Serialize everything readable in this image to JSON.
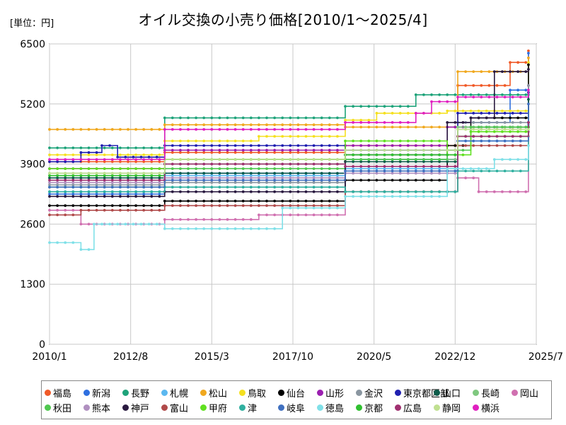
{
  "header": {
    "unit_label": "[単位：円]",
    "title": "オイル交換の小売り価格[2010/1～2025/4]"
  },
  "chart_data": {
    "type": "line",
    "title": "オイル交換の小売り価格[2010/1～2025/4]",
    "unit": "[単位：円]",
    "xlabel": "",
    "ylabel": "",
    "ylim": [
      0,
      6500
    ],
    "xlim": [
      "2010/1",
      "2025/7"
    ],
    "y_ticks": [
      "0",
      "1300",
      "2600",
      "3900",
      "5200",
      "6500"
    ],
    "x_ticks": [
      "2010/1",
      "2012/8",
      "2015/3",
      "2017/10",
      "2020/5",
      "2022/12",
      "2025/7"
    ],
    "grid": true,
    "legend_position": "bottom",
    "series": [
      {
        "name": "福島",
        "color": "#f05a28",
        "points": [
          [
            "2010/1",
            3950
          ],
          [
            "2013/9",
            4150
          ],
          [
            "2019/6",
            4300
          ],
          [
            "2023/1",
            5600
          ],
          [
            "2024/9",
            6100
          ],
          [
            "2025/4",
            6350
          ]
        ]
      },
      {
        "name": "新潟",
        "color": "#2e6fe0",
        "points": [
          [
            "2010/1",
            3250
          ],
          [
            "2013/9",
            3700
          ],
          [
            "2019/6",
            4000
          ],
          [
            "2023/1",
            4800
          ],
          [
            "2024/9",
            5500
          ],
          [
            "2025/4",
            6300
          ]
        ]
      },
      {
        "name": "長野",
        "color": "#1ea37a",
        "points": [
          [
            "2010/1",
            4250
          ],
          [
            "2013/9",
            4900
          ],
          [
            "2019/6",
            5150
          ],
          [
            "2021/9",
            5400
          ],
          [
            "2025/4",
            5400
          ]
        ]
      },
      {
        "name": "札幌",
        "color": "#5bb8f0",
        "points": [
          [
            "2010/1",
            3300
          ],
          [
            "2013/9",
            3650
          ],
          [
            "2019/6",
            3800
          ],
          [
            "2023/1",
            4400
          ],
          [
            "2025/4",
            4750
          ]
        ]
      },
      {
        "name": "松山",
        "color": "#f0a81e",
        "points": [
          [
            "2010/1",
            4650
          ],
          [
            "2013/9",
            4750
          ],
          [
            "2019/6",
            4700
          ],
          [
            "2023/1",
            5900
          ],
          [
            "2025/4",
            6200
          ]
        ]
      },
      {
        "name": "鳥取",
        "color": "#f5e020",
        "points": [
          [
            "2010/1",
            4100
          ],
          [
            "2013/9",
            4400
          ],
          [
            "2016/9",
            4500
          ],
          [
            "2019/6",
            4850
          ],
          [
            "2020/6",
            5000
          ],
          [
            "2022/9",
            5050
          ],
          [
            "2025/4",
            6100
          ]
        ]
      },
      {
        "name": "仙台",
        "color": "#000000",
        "points": [
          [
            "2010/1",
            3000
          ],
          [
            "2013/9",
            3100
          ],
          [
            "2019/6",
            3550
          ],
          [
            "2022/9",
            4300
          ],
          [
            "2023/6",
            4900
          ],
          [
            "2025/4",
            6050
          ]
        ]
      },
      {
        "name": "山形",
        "color": "#9b1fb0",
        "points": [
          [
            "2010/1",
            3800
          ],
          [
            "2013/9",
            4200
          ],
          [
            "2019/6",
            4300
          ],
          [
            "2022/9",
            4700
          ],
          [
            "2025/4",
            5600
          ]
        ]
      },
      {
        "name": "金沢",
        "color": "#8a96a0",
        "points": [
          [
            "2010/1",
            3450
          ],
          [
            "2013/9",
            3500
          ],
          [
            "2019/6",
            4100
          ],
          [
            "2023/1",
            4800
          ],
          [
            "2025/4",
            5600
          ]
        ]
      },
      {
        "name": "東京都区部",
        "color": "#2020b0",
        "points": [
          [
            "2010/1",
            3950
          ],
          [
            "2011/1",
            4150
          ],
          [
            "2011/9",
            4300
          ],
          [
            "2012/3",
            4050
          ],
          [
            "2013/9",
            4300
          ],
          [
            "2019/6",
            4200
          ],
          [
            "2023/1",
            5000
          ],
          [
            "2025/4",
            5450
          ]
        ]
      },
      {
        "name": "山口",
        "color": "#0d5c4a",
        "points": [
          [
            "2010/1",
            3600
          ],
          [
            "2013/9",
            3700
          ],
          [
            "2019/6",
            3950
          ],
          [
            "2023/1",
            4700
          ],
          [
            "2025/4",
            5300
          ]
        ]
      },
      {
        "name": "長崎",
        "color": "#7fc87f",
        "points": [
          [
            "2010/1",
            3700
          ],
          [
            "2013/9",
            3900
          ],
          [
            "2019/6",
            4000
          ],
          [
            "2023/1",
            4700
          ],
          [
            "2025/4",
            4800
          ]
        ]
      },
      {
        "name": "岡山",
        "color": "#d070b0",
        "points": [
          [
            "2010/1",
            2900
          ],
          [
            "2011/1",
            2600
          ],
          [
            "2013/9",
            2700
          ],
          [
            "2016/9",
            2800
          ],
          [
            "2019/6",
            3300
          ],
          [
            "2023/1",
            3600
          ],
          [
            "2023/9",
            3300
          ],
          [
            "2024/9",
            3300
          ],
          [
            "2025/4",
            4600
          ]
        ]
      },
      {
        "name": "秋田",
        "color": "#50c850",
        "points": [
          [
            "2010/1",
            3400
          ],
          [
            "2013/9",
            3800
          ],
          [
            "2019/6",
            4000
          ],
          [
            "2022/9",
            4200
          ],
          [
            "2023/6",
            4700
          ],
          [
            "2025/4",
            4700
          ]
        ]
      },
      {
        "name": "熊本",
        "color": "#b090c0",
        "points": [
          [
            "2010/1",
            3500
          ],
          [
            "2013/9",
            3600
          ],
          [
            "2019/6",
            3700
          ],
          [
            "2023/1",
            4500
          ],
          [
            "2025/4",
            4500
          ]
        ]
      },
      {
        "name": "神戸",
        "color": "#2a1a40",
        "points": [
          [
            "2010/1",
            3200
          ],
          [
            "2013/9",
            3300
          ],
          [
            "2019/6",
            4100
          ],
          [
            "2022/9",
            4800
          ],
          [
            "2023/6",
            4900
          ],
          [
            "2024/3",
            5900
          ],
          [
            "2025/4",
            5950
          ]
        ]
      },
      {
        "name": "富山",
        "color": "#b04a4a",
        "points": [
          [
            "2010/1",
            2800
          ],
          [
            "2011/1",
            2900
          ],
          [
            "2013/9",
            3000
          ],
          [
            "2019/6",
            3300
          ],
          [
            "2023/1",
            4300
          ],
          [
            "2025/4",
            4800
          ]
        ]
      },
      {
        "name": "甲府",
        "color": "#60e020",
        "points": [
          [
            "2010/1",
            3800
          ],
          [
            "2013/9",
            4000
          ],
          [
            "2019/6",
            4400
          ],
          [
            "2022/9",
            4100
          ],
          [
            "2023/6",
            4600
          ],
          [
            "2025/4",
            4700
          ]
        ]
      },
      {
        "name": "津",
        "color": "#30b0a0",
        "points": [
          [
            "2010/1",
            3300
          ],
          [
            "2013/9",
            3400
          ],
          [
            "2019/6",
            3300
          ],
          [
            "2023/1",
            3750
          ],
          [
            "2025/4",
            4800
          ]
        ]
      },
      {
        "name": "岐阜",
        "color": "#4070c0",
        "points": [
          [
            "2010/1",
            3400
          ],
          [
            "2013/9",
            3550
          ],
          [
            "2019/6",
            3750
          ],
          [
            "2023/1",
            4400
          ],
          [
            "2025/4",
            5200
          ]
        ]
      },
      {
        "name": "徳島",
        "color": "#80e0e8",
        "points": [
          [
            "2010/1",
            2200
          ],
          [
            "2011/1",
            2050
          ],
          [
            "2011/6",
            2600
          ],
          [
            "2013/9",
            2500
          ],
          [
            "2016/9",
            2500
          ],
          [
            "2017/6",
            2950
          ],
          [
            "2019/6",
            3200
          ],
          [
            "2022/9",
            3800
          ],
          [
            "2024/3",
            4000
          ],
          [
            "2025/4",
            4300
          ]
        ]
      },
      {
        "name": "京都",
        "color": "#30c030",
        "points": [
          [
            "2010/1",
            3650
          ],
          [
            "2013/9",
            4000
          ],
          [
            "2019/6",
            4100
          ],
          [
            "2023/1",
            4500
          ],
          [
            "2025/4",
            4700
          ]
        ]
      },
      {
        "name": "広島",
        "color": "#a03070",
        "points": [
          [
            "2010/1",
            3550
          ],
          [
            "2013/9",
            3900
          ],
          [
            "2019/6",
            3850
          ],
          [
            "2023/1",
            4500
          ],
          [
            "2025/4",
            4800
          ]
        ]
      },
      {
        "name": "静岡",
        "color": "#c0e090",
        "points": [
          [
            "2010/1",
            3700
          ],
          [
            "2013/9",
            4000
          ],
          [
            "2019/6",
            4200
          ],
          [
            "2023/1",
            4650
          ],
          [
            "2025/4",
            4650
          ]
        ]
      },
      {
        "name": "横浜",
        "color": "#e020c0",
        "points": [
          [
            "2010/1",
            4000
          ],
          [
            "2013/9",
            4650
          ],
          [
            "2019/6",
            4800
          ],
          [
            "2021/9",
            5000
          ],
          [
            "2022/3",
            5250
          ],
          [
            "2023/1",
            5350
          ],
          [
            "2025/4",
            5500
          ]
        ]
      }
    ]
  }
}
